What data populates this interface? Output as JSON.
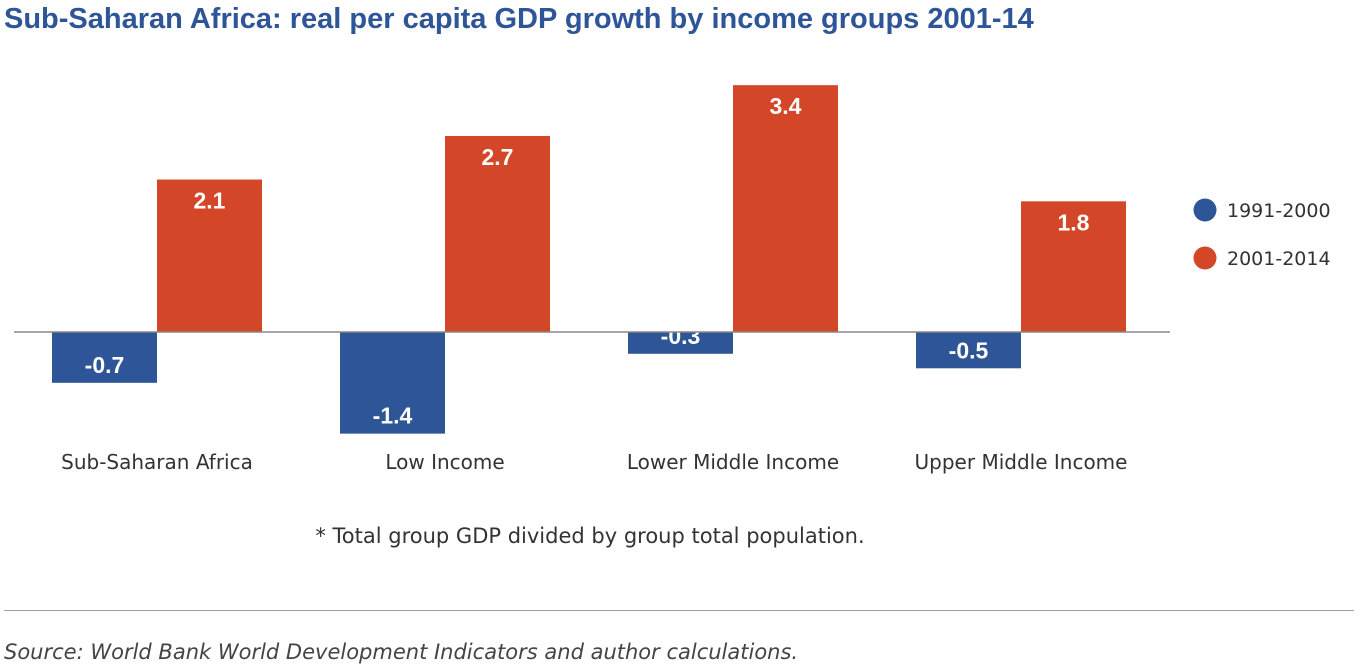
{
  "title": "Sub-Saharan Africa: real per capita GDP growth by income groups 2001-14",
  "footnote": "* Total group GDP divided by group total population.",
  "source": "Source: World Bank World Development Indicators and author calculations.",
  "colors": {
    "series_1": "#2e5597",
    "series_2": "#d34628",
    "title": "#2e5597",
    "axis": "#888888"
  },
  "chart_data": {
    "type": "bar",
    "categories": [
      "Sub-Saharan Africa",
      "Low Income",
      "Lower Middle Income",
      "Upper Middle Income"
    ],
    "series": [
      {
        "name": "1991-2000",
        "values": [
          -0.7,
          -1.4,
          -0.3,
          -0.5
        ]
      },
      {
        "name": "2001-2014",
        "values": [
          2.1,
          2.7,
          3.4,
          1.8
        ]
      }
    ],
    "data_labels": true,
    "legend": "right",
    "grid": false,
    "ylim": [
      -1.4,
      3.4
    ]
  }
}
